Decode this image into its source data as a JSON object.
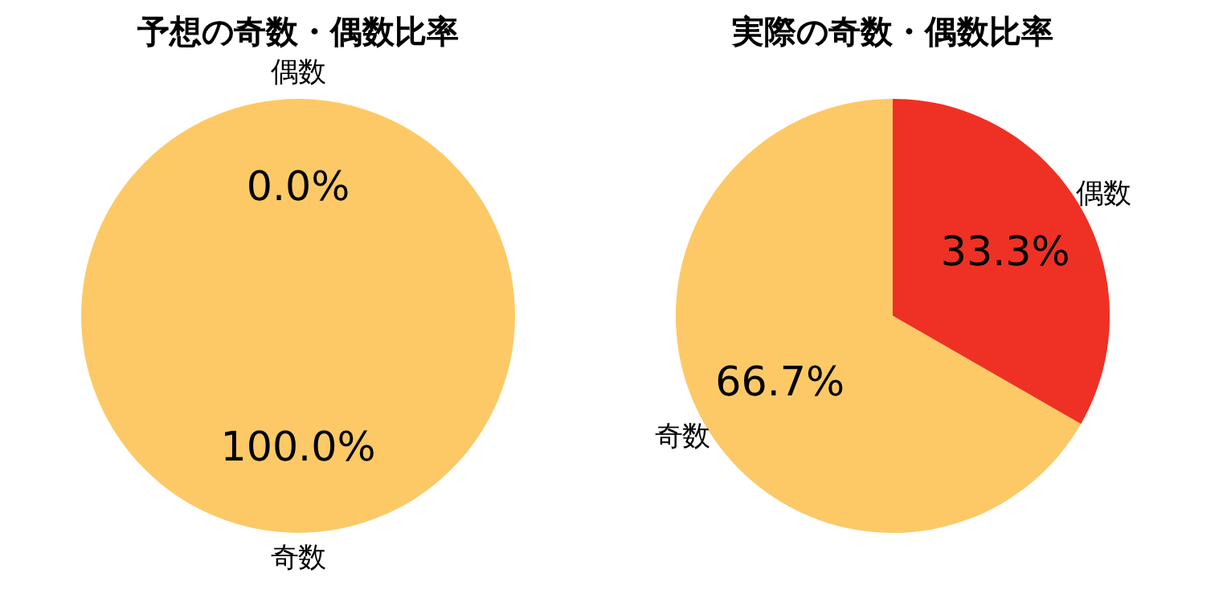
{
  "chart_data": [
    {
      "type": "pie",
      "title": "予想の奇数・偶数比率",
      "categories": [
        "偶数",
        "奇数"
      ],
      "values": [
        0,
        100
      ],
      "colors": [
        "#ee3124",
        "#fdc966"
      ],
      "value_labels": [
        "0.0%",
        "100.0%"
      ]
    },
    {
      "type": "pie",
      "title": "実際の奇数・偶数比率",
      "categories": [
        "偶数",
        "奇数"
      ],
      "values": [
        33.3,
        66.7
      ],
      "colors": [
        "#ee3124",
        "#fdc966"
      ],
      "value_labels": [
        "33.3%",
        "66.7%"
      ]
    }
  ]
}
